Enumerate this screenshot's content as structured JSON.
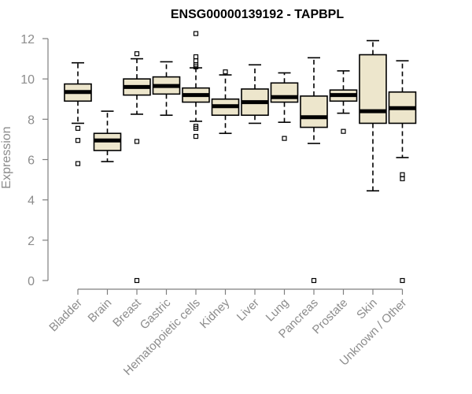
{
  "chart_data": {
    "type": "boxplot",
    "title": "ENSG00000139192 - TAPBPL",
    "xlabel": "",
    "ylabel": "Expression",
    "ylim": [
      0,
      12.3
    ],
    "yticks": [
      0,
      2,
      4,
      6,
      8,
      10,
      12
    ],
    "box_fill": "#ede6cc",
    "axis_color": "#7f7f7f",
    "label_color": "#8c8c8c",
    "grid": false,
    "categories": [
      "Bladder",
      "Brain",
      "Breast",
      "Gastric",
      "Hematopoietic cells",
      "Kidney",
      "Liver",
      "Lung",
      "Pancreas",
      "Prostate",
      "Skin",
      "Unknown / Other"
    ],
    "boxes": [
      {
        "label": "Bladder",
        "whislo": 7.8,
        "q1": 8.9,
        "med": 9.35,
        "q3": 9.75,
        "whishi": 10.8,
        "fliers": [
          7.55,
          6.95,
          5.8
        ]
      },
      {
        "label": "Brain",
        "whislo": 5.9,
        "q1": 6.45,
        "med": 6.95,
        "q3": 7.3,
        "whishi": 8.4,
        "fliers": []
      },
      {
        "label": "Breast",
        "whislo": 8.25,
        "q1": 9.2,
        "med": 9.6,
        "q3": 10.0,
        "whishi": 11.0,
        "fliers": [
          11.25,
          6.9,
          0.0
        ]
      },
      {
        "label": "Gastric",
        "whislo": 8.2,
        "q1": 9.25,
        "med": 9.65,
        "q3": 10.1,
        "whishi": 10.85,
        "fliers": []
      },
      {
        "label": "Hematopoietic cells",
        "whislo": 7.9,
        "q1": 8.85,
        "med": 9.2,
        "q3": 9.55,
        "whishi": 10.55,
        "fliers": [
          12.25,
          11.1,
          10.9,
          10.7,
          10.6,
          7.65,
          7.55,
          7.15
        ]
      },
      {
        "label": "Kidney",
        "whislo": 7.3,
        "q1": 8.2,
        "med": 8.65,
        "q3": 9.0,
        "whishi": 10.2,
        "fliers": [
          10.35
        ]
      },
      {
        "label": "Liver",
        "whislo": 7.8,
        "q1": 8.2,
        "med": 8.85,
        "q3": 9.5,
        "whishi": 10.7,
        "fliers": []
      },
      {
        "label": "Lung",
        "whislo": 7.85,
        "q1": 8.85,
        "med": 9.1,
        "q3": 9.8,
        "whishi": 10.3,
        "fliers": [
          7.05
        ]
      },
      {
        "label": "Pancreas",
        "whislo": 6.8,
        "q1": 7.6,
        "med": 8.1,
        "q3": 9.15,
        "whishi": 11.05,
        "fliers": [
          0.0
        ]
      },
      {
        "label": "Prostate",
        "whislo": 8.3,
        "q1": 8.9,
        "med": 9.2,
        "q3": 9.45,
        "whishi": 10.4,
        "fliers": [
          7.4
        ]
      },
      {
        "label": "Skin",
        "whislo": 4.45,
        "q1": 7.8,
        "med": 8.4,
        "q3": 11.2,
        "whishi": 11.9,
        "fliers": []
      },
      {
        "label": "Unknown / Other",
        "whislo": 6.1,
        "q1": 7.8,
        "med": 8.55,
        "q3": 9.35,
        "whishi": 10.9,
        "fliers": [
          5.25,
          5.05,
          0.0
        ]
      }
    ]
  }
}
